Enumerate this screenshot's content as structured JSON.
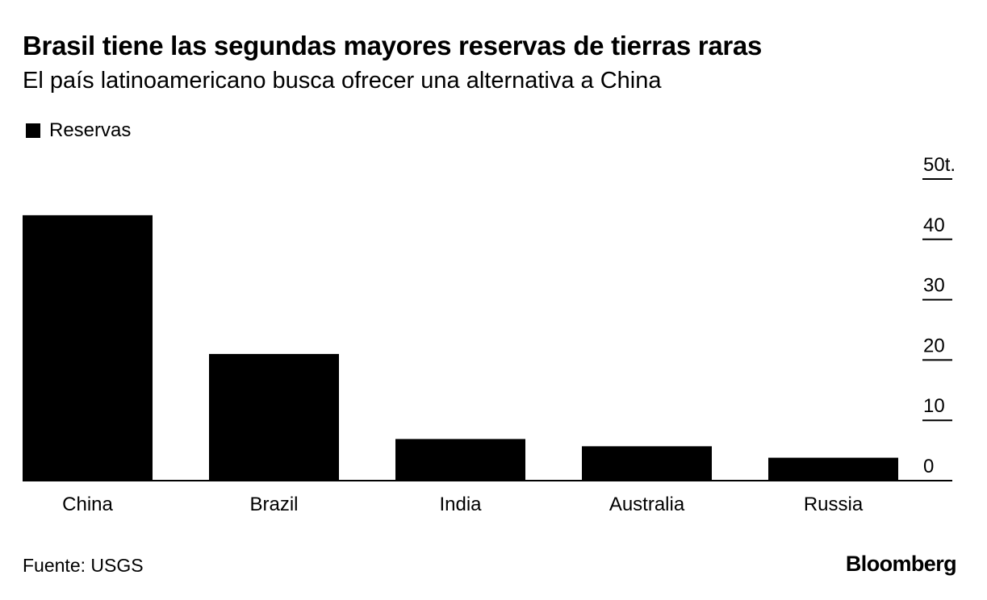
{
  "header": {
    "title": "Brasil tiene las segundas mayores reservas de tierras raras",
    "subtitle": "El país latinoamericano busca ofrecer una alternativa a China"
  },
  "legend": {
    "label": "Reservas",
    "color": "#000000"
  },
  "footer": {
    "source": "Fuente: USGS",
    "brand": "Bloomberg"
  },
  "chart_data": {
    "type": "bar",
    "title": "Brasil tiene las segundas mayores reservas de tierras raras",
    "subtitle": "El país latinoamericano busca ofrecer una alternativa a China",
    "categories": [
      "China",
      "Brazil",
      "India",
      "Australia",
      "Russia"
    ],
    "series": [
      {
        "name": "Reservas",
        "values": [
          44,
          21,
          6.9,
          5.7,
          3.8
        ],
        "color": "#000000"
      }
    ],
    "ylim": [
      0,
      50
    ],
    "yticks": [
      0,
      10,
      20,
      30,
      40,
      50
    ],
    "ytick_labels": [
      "0",
      "10",
      "20",
      "30",
      "40",
      "50t."
    ],
    "y_axis_position": "right",
    "grid": false,
    "legend_position": "top-left"
  }
}
